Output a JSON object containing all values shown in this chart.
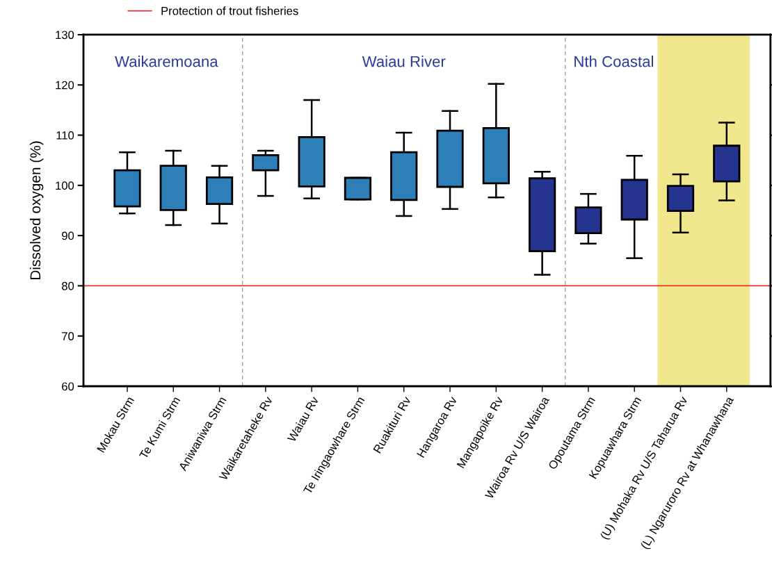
{
  "chart_data": {
    "type": "box",
    "ylabel": "Dissolved oxygen (%)",
    "categories": [
      "Mokau Strm",
      "Te Kumi Strm",
      "Aniwaniwa Strm",
      "Waikaretaheke Rv",
      "Waiau Rv",
      "Te Iringaowhare Strm",
      "Ruakituri Rv",
      "Hangaroa Rv",
      "Mangapoike Rv",
      "Wairoa Rv U/S Wairoa",
      "Opoutama Strm",
      "Kopuawhara Strm",
      "(U) Mohaka Rv U/S Taharua Rv",
      "(L) Ngaruroro Rv at Whanawhana"
    ],
    "boxes": [
      {
        "low": 94.4,
        "q1": 95.8,
        "median": 98.5,
        "q3": 103.0,
        "high": 106.6
      },
      {
        "low": 92.1,
        "q1": 95.1,
        "median": 100.9,
        "q3": 103.9,
        "high": 106.9
      },
      {
        "low": 92.4,
        "q1": 96.3,
        "median": 98.4,
        "q3": 101.6,
        "high": 103.9
      },
      {
        "low": 97.9,
        "q1": 103.0,
        "median": 105.7,
        "q3": 106.0,
        "high": 106.9
      },
      {
        "low": 97.4,
        "q1": 99.8,
        "median": 104.0,
        "q3": 109.6,
        "high": 117.0
      },
      {
        "low": 97.2,
        "q1": 97.2,
        "median": 99.5,
        "q3": 101.5,
        "high": 101.5
      },
      {
        "low": 93.9,
        "q1": 97.1,
        "median": 103.4,
        "q3": 106.6,
        "high": 110.5
      },
      {
        "low": 95.3,
        "q1": 99.7,
        "median": 103.3,
        "q3": 110.9,
        "high": 114.8
      },
      {
        "low": 97.6,
        "q1": 100.4,
        "median": 106.6,
        "q3": 111.4,
        "high": 120.2
      },
      {
        "low": 82.2,
        "q1": 86.9,
        "median": 96.9,
        "q3": 101.4,
        "high": 102.7
      },
      {
        "low": 88.4,
        "q1": 90.5,
        "median": 93.7,
        "q3": 95.6,
        "high": 98.3
      },
      {
        "low": 85.5,
        "q1": 93.2,
        "median": 98.6,
        "q3": 101.1,
        "high": 105.9
      },
      {
        "low": 90.6,
        "q1": 94.9,
        "median": 96.9,
        "q3": 99.9,
        "high": 102.2
      },
      {
        "low": 97.0,
        "q1": 100.8,
        "median": 103.4,
        "q3": 107.9,
        "high": 112.5
      }
    ],
    "colors": [
      "#2e7fb8",
      "#2e7fb8",
      "#2e7fb8",
      "#2e7fb8",
      "#2e7fb8",
      "#2e7fb8",
      "#2e7fb8",
      "#2e7fb8",
      "#2e7fb8",
      "#24348f",
      "#24348f",
      "#24348f",
      "#24348f",
      "#24348f"
    ],
    "ylim": [
      60,
      130
    ],
    "yticks": [
      60,
      70,
      80,
      90,
      100,
      110,
      120,
      130
    ],
    "ref_lines": [
      {
        "axis": "y",
        "value": 80,
        "label": "Protection of trout fisheries",
        "color": "#e8302a",
        "line_style": "solid"
      }
    ],
    "annotations": [
      "Waikaremoana",
      "Waiau River",
      "Nth Coastal"
    ],
    "legend": "top left",
    "grid": false
  }
}
